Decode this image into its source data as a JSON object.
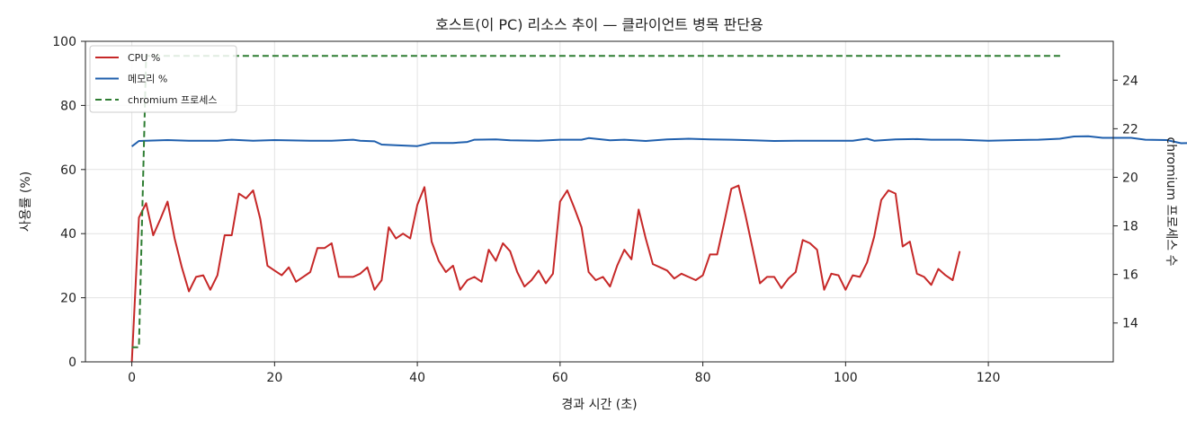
{
  "chart_data": {
    "type": "line",
    "title": "호스트(이 PC) 리소스 추이 — 클라이언트 병목 판단용",
    "xlabel": "경과 시간 (초)",
    "ylabel": "사용률 (%)",
    "y2label": "chromium 프로세스 수",
    "xlim": [
      -6.5,
      137.5
    ],
    "ylim": [
      0,
      100
    ],
    "y2lim": [
      12.4,
      25.6
    ],
    "xticks": [
      0,
      20,
      40,
      60,
      80,
      100,
      120
    ],
    "xtick_labels": [
      "0",
      "20",
      "40",
      "60",
      "80",
      "100",
      "120"
    ],
    "yticks": [
      0,
      20,
      40,
      60,
      80,
      100
    ],
    "ytick_labels": [
      "0",
      "20",
      "40",
      "60",
      "80",
      "100"
    ],
    "y2ticks": [
      14,
      16,
      18,
      20,
      22,
      24
    ],
    "y2tick_labels": [
      "14",
      "16",
      "18",
      "20",
      "22",
      "24"
    ],
    "grid": true,
    "legend_position": "top-left",
    "series": [
      {
        "name": "CPU %",
        "axis": "left",
        "color": "#c62828",
        "style": "solid",
        "points": [
          [
            0,
            0
          ],
          [
            1,
            45
          ],
          [
            2,
            49.5
          ],
          [
            3,
            39.5
          ],
          [
            4,
            44.5
          ],
          [
            5,
            50
          ],
          [
            6,
            38.5
          ],
          [
            7,
            29.5
          ],
          [
            8,
            22
          ],
          [
            9,
            26.5
          ],
          [
            10,
            27
          ],
          [
            11,
            22.5
          ],
          [
            12,
            27
          ],
          [
            13,
            39.5
          ],
          [
            14,
            39.5
          ],
          [
            15,
            52.5
          ],
          [
            16,
            51
          ],
          [
            17,
            53.5
          ],
          [
            18,
            44.5
          ],
          [
            19,
            30
          ],
          [
            20,
            28.5
          ],
          [
            21,
            27
          ],
          [
            22,
            29.5
          ],
          [
            23,
            25
          ],
          [
            24,
            26.5
          ],
          [
            25,
            28
          ],
          [
            26,
            35.5
          ],
          [
            27,
            35.5
          ],
          [
            28,
            37
          ],
          [
            29,
            26.5
          ],
          [
            30,
            26.5
          ],
          [
            31,
            26.5
          ],
          [
            32,
            27.5
          ],
          [
            33,
            29.5
          ],
          [
            34,
            22.5
          ],
          [
            35,
            25.5
          ],
          [
            36,
            42
          ],
          [
            37,
            38.5
          ],
          [
            38,
            40
          ],
          [
            39,
            38.5
          ],
          [
            40,
            49
          ],
          [
            41,
            54.5
          ],
          [
            42,
            37.5
          ],
          [
            43,
            31.5
          ],
          [
            44,
            28
          ],
          [
            45,
            30
          ],
          [
            46,
            22.5
          ],
          [
            47,
            25.5
          ],
          [
            48,
            26.5
          ],
          [
            49,
            25
          ],
          [
            50,
            35
          ],
          [
            51,
            31.5
          ],
          [
            52,
            37
          ],
          [
            53,
            34.5
          ],
          [
            54,
            28
          ],
          [
            55,
            23.5
          ],
          [
            56,
            25.5
          ],
          [
            57,
            28.5
          ],
          [
            58,
            24.5
          ],
          [
            59,
            27.5
          ],
          [
            60,
            50
          ],
          [
            61,
            53.5
          ],
          [
            62,
            48
          ],
          [
            63,
            42
          ],
          [
            64,
            28
          ],
          [
            65,
            25.5
          ],
          [
            66,
            26.5
          ],
          [
            67,
            23.5
          ],
          [
            68,
            30
          ],
          [
            69,
            35
          ],
          [
            70,
            32
          ],
          [
            71,
            47.5
          ],
          [
            72,
            38.5
          ],
          [
            73,
            30.5
          ],
          [
            74,
            29.5
          ],
          [
            75,
            28.5
          ],
          [
            76,
            26
          ],
          [
            77,
            27.5
          ],
          [
            78,
            26.5
          ],
          [
            79,
            25.5
          ],
          [
            80,
            27
          ],
          [
            81,
            33.5
          ],
          [
            82,
            33.5
          ],
          [
            83,
            43.5
          ],
          [
            84,
            54
          ],
          [
            85,
            55
          ],
          [
            86,
            45.5
          ],
          [
            87,
            35
          ],
          [
            88,
            24.5
          ],
          [
            89,
            26.5
          ],
          [
            90,
            26.5
          ],
          [
            91,
            23
          ],
          [
            92,
            26
          ],
          [
            93,
            28
          ],
          [
            94,
            38
          ],
          [
            95,
            37
          ],
          [
            96,
            35
          ],
          [
            97,
            22.5
          ],
          [
            98,
            27.5
          ],
          [
            99,
            27
          ],
          [
            100,
            22.5
          ],
          [
            101,
            27
          ],
          [
            102,
            26.5
          ],
          [
            103,
            31
          ],
          [
            104,
            39
          ],
          [
            105,
            50.5
          ],
          [
            106,
            53.5
          ],
          [
            107,
            52.5
          ],
          [
            108,
            36
          ],
          [
            109,
            37.5
          ],
          [
            110,
            27.5
          ],
          [
            111,
            26.5
          ],
          [
            112,
            24
          ],
          [
            113,
            29
          ],
          [
            114,
            27
          ],
          [
            115,
            25.5
          ],
          [
            116,
            34.5
          ]
        ]
      },
      {
        "name": "메모리 %",
        "axis": "left",
        "color": "#1f5fad",
        "style": "solid",
        "points": [
          [
            0,
            67.2
          ],
          [
            1,
            68.9
          ],
          [
            2,
            69
          ],
          [
            5,
            69.2
          ],
          [
            8,
            69
          ],
          [
            12,
            69
          ],
          [
            14,
            69.3
          ],
          [
            17,
            69
          ],
          [
            20,
            69.2
          ],
          [
            25,
            69
          ],
          [
            28,
            69
          ],
          [
            31,
            69.3
          ],
          [
            32,
            69
          ],
          [
            34,
            68.8
          ],
          [
            35,
            67.8
          ],
          [
            37,
            67.6
          ],
          [
            40,
            67.3
          ],
          [
            42,
            68.3
          ],
          [
            45,
            68.3
          ],
          [
            47,
            68.6
          ],
          [
            48,
            69.3
          ],
          [
            51,
            69.4
          ],
          [
            53,
            69.1
          ],
          [
            57,
            69
          ],
          [
            60,
            69.3
          ],
          [
            63,
            69.3
          ],
          [
            64,
            69.8
          ],
          [
            67,
            69.1
          ],
          [
            69,
            69.3
          ],
          [
            72,
            68.9
          ],
          [
            75,
            69.4
          ],
          [
            78,
            69.6
          ],
          [
            81,
            69.4
          ],
          [
            84,
            69.3
          ],
          [
            87,
            69.1
          ],
          [
            90,
            68.9
          ],
          [
            93,
            69
          ],
          [
            97,
            69
          ],
          [
            101,
            69
          ],
          [
            103,
            69.6
          ],
          [
            104,
            69
          ],
          [
            107,
            69.4
          ],
          [
            110,
            69.5
          ],
          [
            112,
            69.3
          ],
          [
            116,
            69.3
          ],
          [
            120,
            69
          ],
          [
            124,
            69.2
          ],
          [
            127,
            69.3
          ],
          [
            130,
            69.6
          ],
          [
            132,
            70.3
          ],
          [
            134,
            70.4
          ],
          [
            136,
            69.9
          ],
          [
            140,
            69.9
          ],
          [
            142,
            69.3
          ],
          [
            145,
            69.2
          ],
          [
            147,
            68.2
          ],
          [
            149,
            68.3
          ]
        ]
      },
      {
        "name": "chromium 프로세스",
        "axis": "right",
        "color": "#2e7d32",
        "style": "dashed",
        "points": [
          [
            0,
            13
          ],
          [
            1,
            13
          ],
          [
            2,
            25
          ],
          [
            130.5,
            25
          ]
        ]
      }
    ]
  }
}
